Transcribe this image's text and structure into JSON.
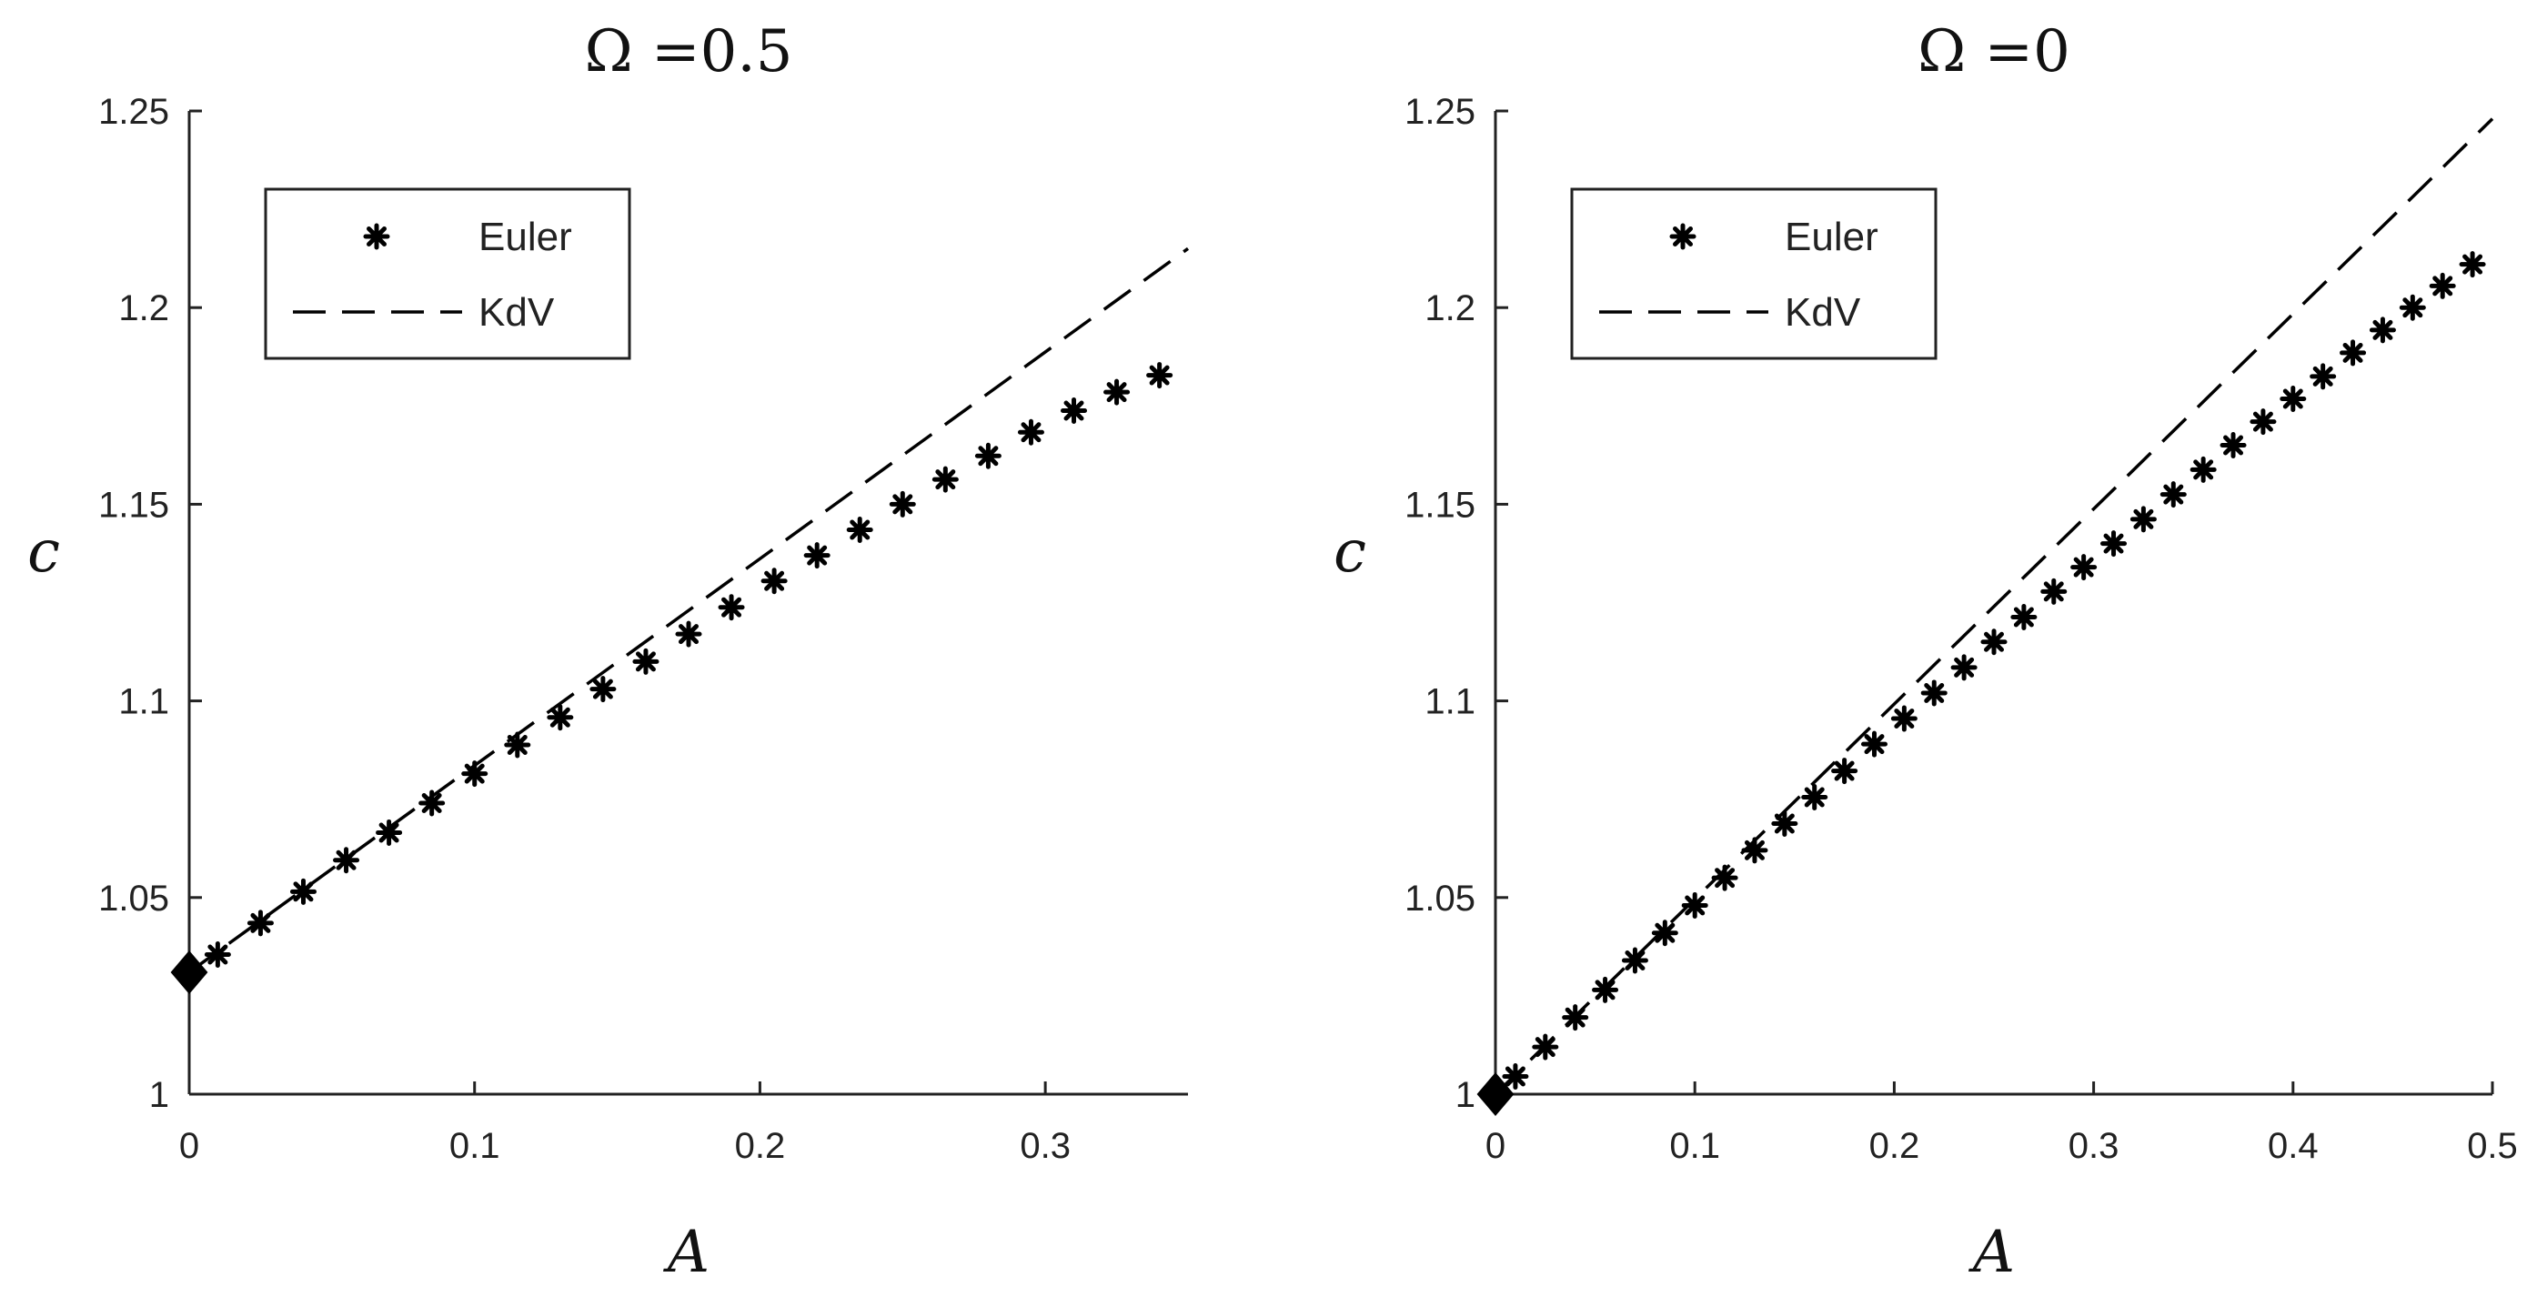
{
  "chart_data": [
    {
      "type": "line",
      "title": "Ω =0.5",
      "xlabel": "A",
      "ylabel": "c",
      "xlim": [
        0,
        0.35
      ],
      "ylim": [
        1,
        1.25
      ],
      "xticks": [
        "0",
        "0.1",
        "0.2",
        "0.3"
      ],
      "xtick_values": [
        0,
        0.1,
        0.2,
        0.3
      ],
      "yticks": [
        "1",
        "1.05",
        "1.1",
        "1.15",
        "1.2",
        "1.25"
      ],
      "ytick_values": [
        1,
        1.05,
        1.1,
        1.15,
        1.2,
        1.25
      ],
      "grid": false,
      "legend_position": "top-left",
      "legend": [
        "Euler",
        "KdV"
      ],
      "series": [
        {
          "name": "Euler",
          "style": "markers-asterisk",
          "color": "#000000",
          "x": [
            0.01,
            0.025,
            0.04,
            0.055,
            0.07,
            0.085,
            0.1,
            0.115,
            0.13,
            0.145,
            0.16,
            0.175,
            0.19,
            0.205,
            0.22,
            0.235,
            0.25,
            0.265,
            0.28,
            0.295,
            0.31,
            0.325,
            0.34
          ],
          "y": [
            1.0355,
            1.0435,
            1.0515,
            1.0595,
            1.0665,
            1.074,
            1.0815,
            1.0888,
            1.0958,
            1.103,
            1.11,
            1.117,
            1.1238,
            1.1305,
            1.137,
            1.1435,
            1.15,
            1.1563,
            1.1623,
            1.1683,
            1.1738,
            1.1785,
            1.1828
          ]
        },
        {
          "name": "KdV",
          "style": "dashed",
          "color": "#000000",
          "x": [
            0,
            0.35
          ],
          "y": [
            1.031,
            1.215
          ]
        }
      ],
      "markers": [
        {
          "shape": "diamond",
          "x": 0,
          "y": 1.031
        }
      ]
    },
    {
      "type": "line",
      "title": "Ω =0",
      "xlabel": "A",
      "ylabel": "c",
      "xlim": [
        0,
        0.5
      ],
      "ylim": [
        1,
        1.25
      ],
      "xticks": [
        "0",
        "0.1",
        "0.2",
        "0.3",
        "0.4",
        "0.5"
      ],
      "xtick_values": [
        0,
        0.1,
        0.2,
        0.3,
        0.4,
        0.5
      ],
      "yticks": [
        "1",
        "1.05",
        "1.1",
        "1.15",
        "1.2",
        "1.25"
      ],
      "ytick_values": [
        1,
        1.05,
        1.1,
        1.15,
        1.2,
        1.25
      ],
      "grid": false,
      "legend_position": "top-left",
      "legend": [
        "Euler",
        "KdV"
      ],
      "series": [
        {
          "name": "Euler",
          "style": "markers-asterisk",
          "color": "#000000",
          "x": [
            0.01,
            0.025,
            0.04,
            0.055,
            0.07,
            0.085,
            0.1,
            0.115,
            0.13,
            0.145,
            0.16,
            0.175,
            0.19,
            0.205,
            0.22,
            0.235,
            0.25,
            0.265,
            0.28,
            0.295,
            0.31,
            0.325,
            0.34,
            0.355,
            0.37,
            0.385,
            0.4,
            0.415,
            0.43,
            0.445,
            0.46,
            0.475,
            0.49
          ],
          "y": [
            1.0045,
            1.012,
            1.0195,
            1.0265,
            1.034,
            1.041,
            1.048,
            1.055,
            1.062,
            1.0688,
            1.0755,
            1.0822,
            1.089,
            1.0955,
            1.102,
            1.1085,
            1.115,
            1.1213,
            1.1278,
            1.134,
            1.14,
            1.1462,
            1.1525,
            1.1588,
            1.165,
            1.171,
            1.1768,
            1.1825,
            1.1885,
            1.1943,
            1.2,
            1.2055,
            1.211
          ]
        },
        {
          "name": "KdV",
          "style": "dashed",
          "color": "#000000",
          "x": [
            0,
            0.5
          ],
          "y": [
            1.0,
            1.248
          ]
        }
      ],
      "markers": [
        {
          "shape": "diamond",
          "x": 0,
          "y": 1.0
        }
      ]
    }
  ]
}
